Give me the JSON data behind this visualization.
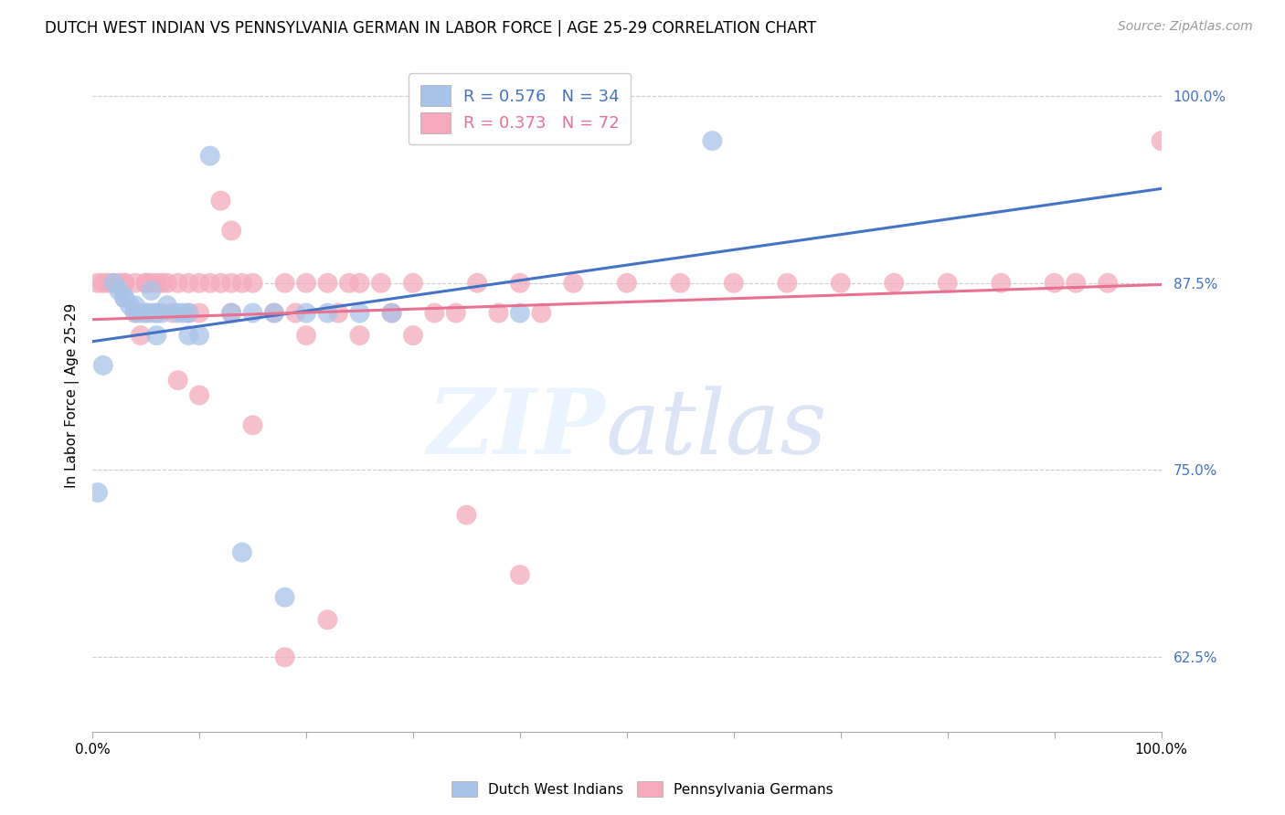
{
  "title": "DUTCH WEST INDIAN VS PENNSYLVANIA GERMAN IN LABOR FORCE | AGE 25-29 CORRELATION CHART",
  "source": "Source: ZipAtlas.com",
  "ylabel": "In Labor Force | Age 25-29",
  "xlim": [
    0.0,
    1.0
  ],
  "ylim": [
    0.575,
    1.025
  ],
  "yticks": [
    0.625,
    0.75,
    0.875,
    1.0
  ],
  "ytick_labels": [
    "62.5%",
    "75.0%",
    "87.5%",
    "100.0%"
  ],
  "blue_R": 0.576,
  "blue_N": 34,
  "pink_R": 0.373,
  "pink_N": 72,
  "blue_color": "#A8C4E8",
  "pink_color": "#F4AABC",
  "blue_line_color": "#4472C4",
  "pink_line_color": "#E87090",
  "legend_label_blue": "Dutch West Indians",
  "legend_label_pink": "Pennsylvania Germans",
  "blue_scatter_x": [
    0.005,
    0.01,
    0.02,
    0.025,
    0.03,
    0.03,
    0.035,
    0.04,
    0.04,
    0.045,
    0.05,
    0.055,
    0.055,
    0.06,
    0.06,
    0.065,
    0.07,
    0.08,
    0.085,
    0.09,
    0.09,
    0.1,
    0.11,
    0.13,
    0.14,
    0.15,
    0.17,
    0.18,
    0.2,
    0.22,
    0.25,
    0.28,
    0.4,
    0.58
  ],
  "blue_scatter_y": [
    0.735,
    0.82,
    0.875,
    0.87,
    0.865,
    0.865,
    0.86,
    0.86,
    0.855,
    0.855,
    0.855,
    0.855,
    0.87,
    0.855,
    0.84,
    0.855,
    0.86,
    0.855,
    0.855,
    0.855,
    0.84,
    0.84,
    0.96,
    0.855,
    0.695,
    0.855,
    0.855,
    0.665,
    0.855,
    0.855,
    0.855,
    0.855,
    0.855,
    0.97
  ],
  "pink_scatter_x": [
    0.005,
    0.01,
    0.015,
    0.02,
    0.025,
    0.03,
    0.03,
    0.04,
    0.04,
    0.05,
    0.05,
    0.05,
    0.055,
    0.06,
    0.06,
    0.065,
    0.07,
    0.075,
    0.08,
    0.09,
    0.09,
    0.1,
    0.1,
    0.11,
    0.12,
    0.13,
    0.13,
    0.14,
    0.15,
    0.17,
    0.18,
    0.19,
    0.2,
    0.22,
    0.23,
    0.24,
    0.25,
    0.27,
    0.28,
    0.3,
    0.32,
    0.34,
    0.36,
    0.38,
    0.4,
    0.42,
    0.45,
    0.5,
    0.55,
    0.6,
    0.65,
    0.7,
    0.75,
    0.8,
    0.85,
    0.9,
    0.92,
    0.95,
    1.0,
    0.12,
    0.13,
    0.2,
    0.25,
    0.3,
    0.35,
    0.4,
    0.045,
    0.08,
    0.1,
    0.15,
    0.18,
    0.22
  ],
  "pink_scatter_y": [
    0.875,
    0.875,
    0.875,
    0.875,
    0.875,
    0.875,
    0.875,
    0.875,
    0.855,
    0.875,
    0.875,
    0.855,
    0.875,
    0.875,
    0.855,
    0.875,
    0.875,
    0.855,
    0.875,
    0.875,
    0.855,
    0.875,
    0.855,
    0.875,
    0.875,
    0.875,
    0.855,
    0.875,
    0.875,
    0.855,
    0.875,
    0.855,
    0.875,
    0.875,
    0.855,
    0.875,
    0.875,
    0.875,
    0.855,
    0.875,
    0.855,
    0.855,
    0.875,
    0.855,
    0.875,
    0.855,
    0.875,
    0.875,
    0.875,
    0.875,
    0.875,
    0.875,
    0.875,
    0.875,
    0.875,
    0.875,
    0.875,
    0.875,
    0.97,
    0.93,
    0.91,
    0.84,
    0.84,
    0.84,
    0.72,
    0.68,
    0.84,
    0.81,
    0.8,
    0.78,
    0.625,
    0.65
  ]
}
